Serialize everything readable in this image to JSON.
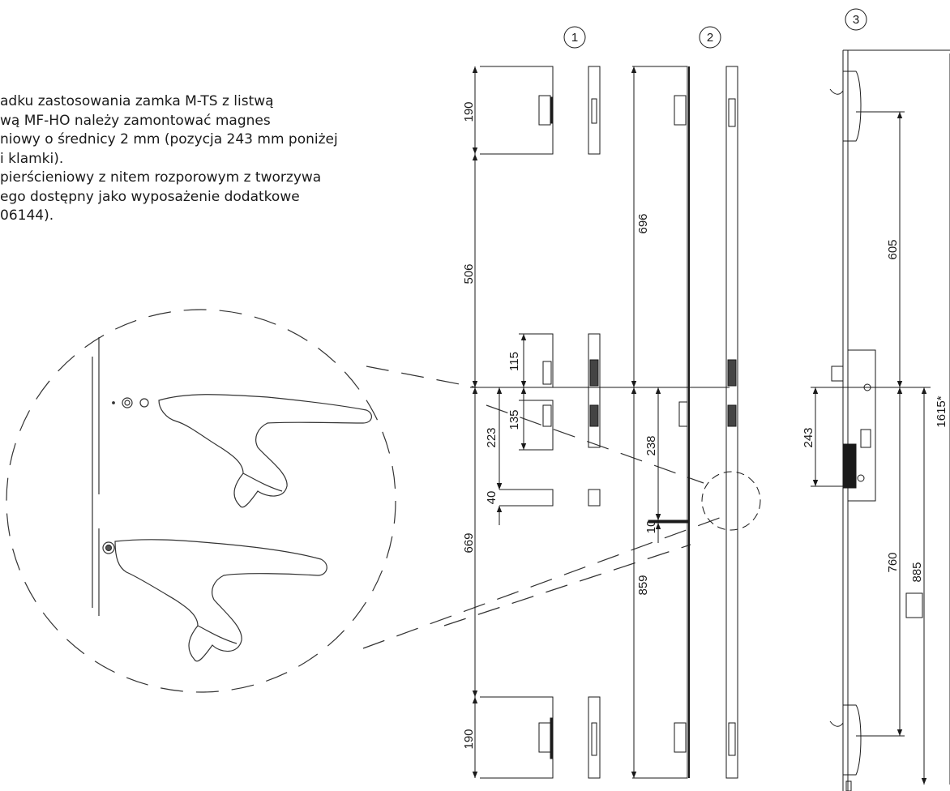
{
  "note_lines": [
    "adku zastosowania zamka M-TS z listwą",
    "wą MF-HO należy zamontować magnes",
    "niowy o średnicy 2 mm (pozycja 243 mm poniżej",
    "i klamki).",
    "pierścieniowy z nitem rozporowym z tworzywa",
    "ego dostępny jako wyposażenie dodatkowe",
    "06144)."
  ],
  "positions": {
    "p1": "1",
    "p2": "2",
    "p3": "3"
  },
  "dimensions": {
    "d190_top": "190",
    "d506": "506",
    "d115": "115",
    "d135": "135",
    "d223": "223",
    "d40": "40",
    "d669": "669",
    "d190_bottom": "190",
    "d696": "696",
    "d238": "238",
    "d10": "10",
    "d859": "859",
    "d605": "605",
    "d243": "243",
    "d760": "760",
    "d885": "885",
    "d1615": "1615*"
  },
  "colors": {
    "line": "#1a1a1a",
    "dash": "#333333"
  }
}
